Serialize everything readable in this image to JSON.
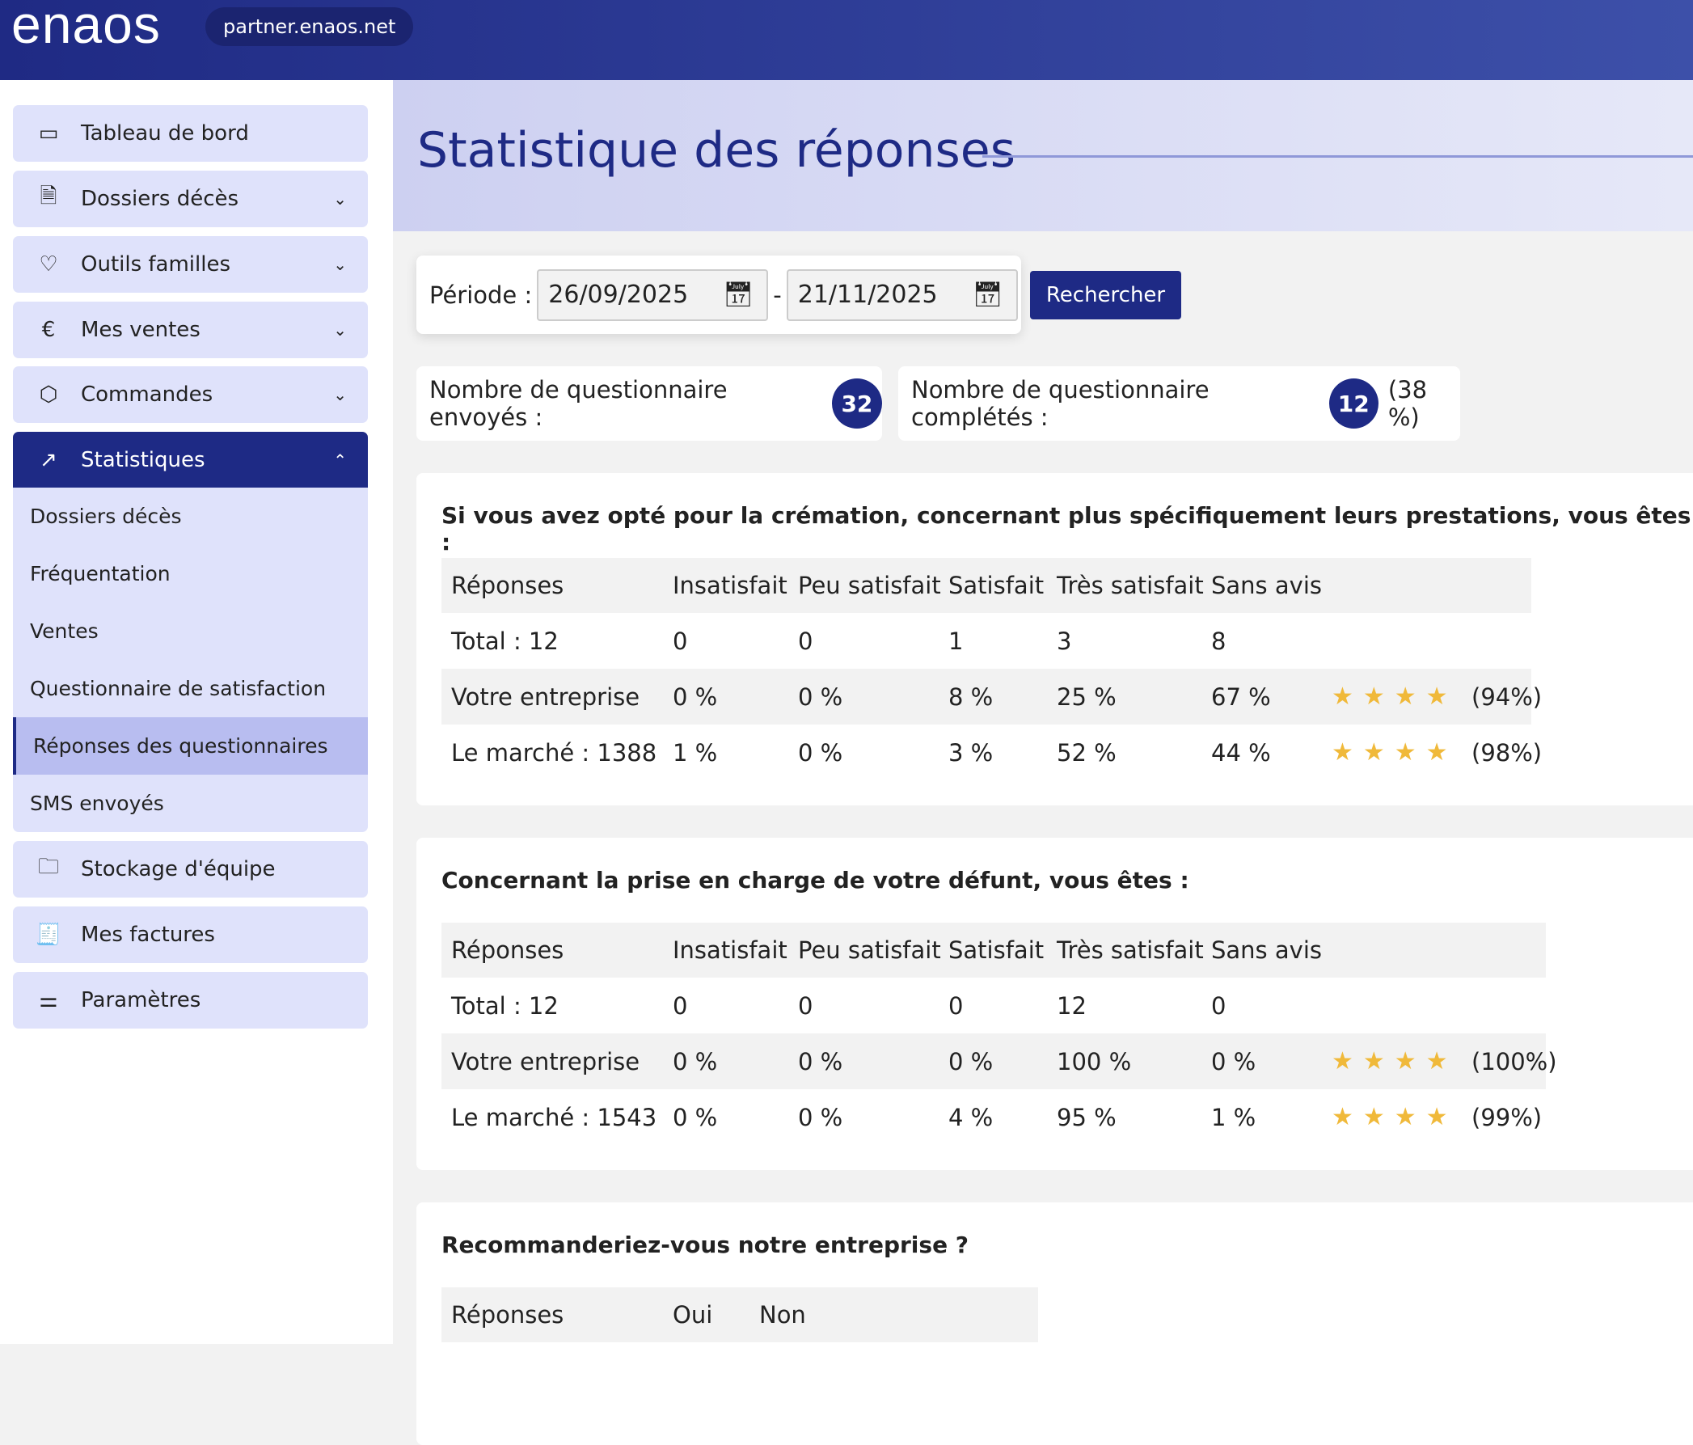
{
  "header": {
    "logo": "enaos",
    "url": "partner.enaos.net"
  },
  "sidebar": {
    "items": [
      {
        "label": "Tableau de bord",
        "icon": "dashboard-icon"
      },
      {
        "label": "Dossiers décès",
        "icon": "document-icon"
      },
      {
        "label": "Outils familles",
        "icon": "family-icon"
      },
      {
        "label": "Mes ventes",
        "icon": "euro-icon"
      },
      {
        "label": "Commandes",
        "icon": "box-icon"
      },
      {
        "label": "Statistiques",
        "icon": "chart-icon"
      },
      {
        "label": "Stockage d'équipe",
        "icon": "folder-icon"
      },
      {
        "label": "Mes factures",
        "icon": "invoice-icon"
      },
      {
        "label": "Paramètres",
        "icon": "sliders-icon"
      }
    ],
    "sub": [
      "Dossiers décès",
      "Fréquentation",
      "Ventes",
      "Questionnaire de satisfaction",
      "Réponses des questionnaires",
      "SMS envoyés"
    ],
    "active_sub": "Réponses des questionnaires"
  },
  "page": {
    "title": "Statistique des réponses"
  },
  "filter": {
    "label": "Période :",
    "from": "26/09/2025",
    "to": "21/11/2025",
    "sep": "-",
    "search": "Rechercher"
  },
  "counts": {
    "sent_label": "Nombre de questionnaire envoyés :",
    "sent": "32",
    "done_label": "Nombre de questionnaire complétés :",
    "done": "12",
    "done_pct": "(38 %)"
  },
  "colors": {
    "primary": "#1e2a85",
    "star": "#f0b93a"
  },
  "cards": [
    {
      "title": "Si vous avez opté pour la crémation, concernant plus spécifiquement leurs prestations, vous êtes :",
      "headers": [
        "Réponses",
        "Insatisfait",
        "Peu satisfait",
        "Satisfait",
        "Très satisfait",
        "Sans avis",
        "",
        ""
      ],
      "rows": [
        [
          "Total : 12",
          "0",
          "0",
          "1",
          "3",
          "8",
          "",
          ""
        ],
        [
          "Votre entreprise",
          "0 %",
          "0 %",
          "8 %",
          "25 %",
          "67 %",
          "★★★★",
          "(94%)"
        ],
        [
          "Le marché : 1388",
          "1 %",
          "0 %",
          "3 %",
          "52 %",
          "44 %",
          "★★★★",
          "(98%)"
        ]
      ]
    },
    {
      "title": "Concernant la prise en charge de votre défunt, vous êtes :",
      "headers": [
        "Réponses",
        "Insatisfait",
        "Peu satisfait",
        "Satisfait",
        "Très satisfait",
        "Sans avis",
        "",
        ""
      ],
      "rows": [
        [
          "Total : 12",
          "0",
          "0",
          "0",
          "12",
          "0",
          "",
          ""
        ],
        [
          "Votre entreprise",
          "0 %",
          "0 %",
          "0 %",
          "100 %",
          "0 %",
          "★★★★",
          "(100%)"
        ],
        [
          "Le marché : 1543",
          "0 %",
          "0 %",
          "4 %",
          "95 %",
          "1 %",
          "★★★★",
          "(99%)"
        ]
      ]
    },
    {
      "title": "Recommanderiez-vous notre entreprise ?",
      "headers": [
        "Réponses",
        "Oui",
        "Non"
      ],
      "rows": []
    }
  ]
}
